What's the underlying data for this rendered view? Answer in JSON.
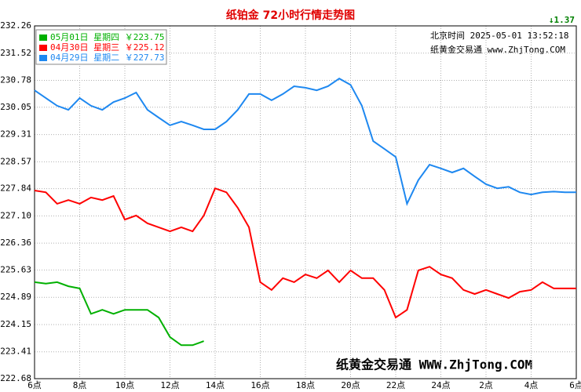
{
  "chart_data": {
    "type": "line",
    "title": "纸铂金 72小时行情走势图",
    "change_label": "↓1.37",
    "time_label": "北京时间 2025-05-01 13:52:18",
    "site_label": "纸黄金交易通 www.ZhjTong.COM",
    "watermark": "纸黄金交易通 WWW.ZhjTong.COM",
    "x": [
      6,
      6.5,
      7,
      7.5,
      8,
      8.5,
      9,
      9.5,
      10,
      10.5,
      11,
      11.5,
      12,
      12.5,
      13,
      13.5,
      14,
      14.5,
      15,
      15.5,
      16,
      16.5,
      17,
      17.5,
      18,
      18.5,
      19,
      19.5,
      20,
      20.5,
      21,
      21.5,
      22,
      22.5,
      23,
      23.5,
      24,
      24.5,
      25,
      25.5,
      26,
      26.5,
      27,
      27.5,
      28,
      28.5,
      29,
      29.5,
      30
    ],
    "xlim": [
      6,
      30
    ],
    "xticks": [
      {
        "value": 6,
        "label": "6点"
      },
      {
        "value": 8,
        "label": "8点"
      },
      {
        "value": 10,
        "label": "10点"
      },
      {
        "value": 12,
        "label": "12点"
      },
      {
        "value": 14,
        "label": "14点"
      },
      {
        "value": 16,
        "label": "16点"
      },
      {
        "value": 18,
        "label": "18点"
      },
      {
        "value": 20,
        "label": "20点"
      },
      {
        "value": 22,
        "label": "22点"
      },
      {
        "value": 24,
        "label": "24点"
      },
      {
        "value": 26,
        "label": "2点"
      },
      {
        "value": 28,
        "label": "4点"
      },
      {
        "value": 30,
        "label": "6点"
      }
    ],
    "ylim": [
      222.68,
      232.26
    ],
    "yticks": [
      232.26,
      231.52,
      230.78,
      230.05,
      229.31,
      228.57,
      227.84,
      {
        "value": 227.1,
        "label": "227.10"
      },
      226.36,
      225.63,
      224.89,
      224.15,
      223.41,
      222.68
    ],
    "grid": true,
    "series": [
      {
        "name": "05月01日 星期四 ￥223.75",
        "color": "#00b000",
        "values": [
          225.3,
          225.26,
          225.3,
          225.19,
          225.13,
          224.44,
          224.55,
          224.44,
          224.55,
          224.55,
          224.55,
          224.34,
          223.81,
          223.59,
          223.59,
          223.7,
          null,
          null,
          null,
          null,
          null,
          null,
          null,
          null,
          null,
          null,
          null,
          null,
          null,
          null,
          null,
          null,
          null,
          null,
          null,
          null,
          null,
          null,
          null,
          null,
          null,
          null,
          null,
          null,
          null,
          null,
          null,
          null,
          null
        ]
      },
      {
        "name": "04月30日 星期三 ￥225.12",
        "color": "#ff0000",
        "values": [
          227.79,
          227.74,
          227.43,
          227.53,
          227.43,
          227.6,
          227.53,
          227.64,
          227.0,
          227.11,
          226.9,
          226.79,
          226.68,
          226.79,
          226.68,
          227.11,
          227.85,
          227.74,
          227.32,
          226.79,
          225.3,
          225.09,
          225.41,
          225.3,
          225.51,
          225.41,
          225.62,
          225.3,
          225.62,
          225.41,
          225.41,
          225.09,
          224.34,
          224.55,
          225.62,
          225.72,
          225.51,
          225.41,
          225.09,
          224.98,
          225.09,
          224.98,
          224.87,
          225.04,
          225.09,
          225.3,
          225.13,
          225.13,
          225.13
        ]
      },
      {
        "name": "04月29日 星期二 ￥227.73",
        "color": "#1e88f0",
        "values": [
          230.51,
          230.3,
          230.09,
          229.98,
          230.3,
          230.09,
          229.98,
          230.19,
          230.3,
          230.45,
          229.98,
          229.77,
          229.56,
          229.66,
          229.56,
          229.45,
          229.45,
          229.66,
          229.98,
          230.41,
          230.41,
          230.24,
          230.41,
          230.62,
          230.58,
          230.51,
          230.62,
          230.83,
          230.66,
          230.09,
          229.13,
          228.92,
          228.7,
          227.43,
          228.07,
          228.49,
          228.39,
          228.28,
          228.39,
          228.17,
          227.96,
          227.85,
          227.89,
          227.74,
          227.68,
          227.74,
          227.76,
          227.74,
          227.74
        ]
      }
    ]
  }
}
